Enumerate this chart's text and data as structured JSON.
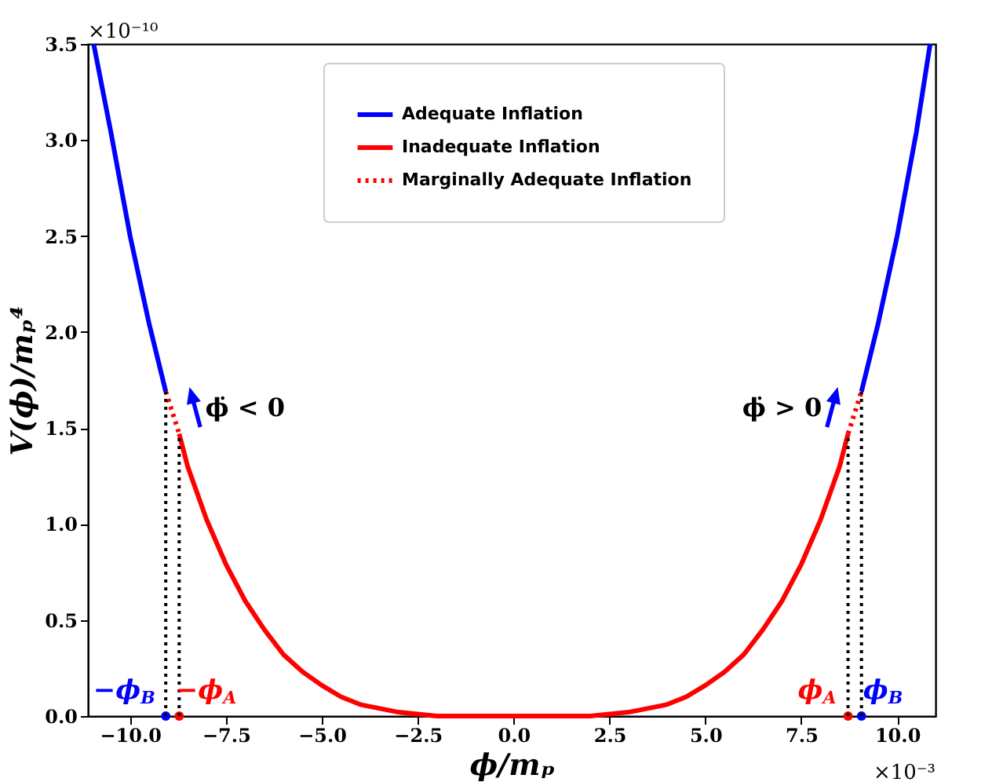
{
  "chart_data": {
    "type": "line",
    "xlabel": "ϕ/mₚ",
    "ylabel": "V(ϕ)/mₚ⁴",
    "xlim": [
      -11.1,
      11.0
    ],
    "ylim": [
      0,
      3.5
    ],
    "xticks": [
      {
        "value": -10,
        "label": "−10.0"
      },
      {
        "value": -7.5,
        "label": "−7.5"
      },
      {
        "value": -5,
        "label": "−5.0"
      },
      {
        "value": -2.5,
        "label": "−2.5"
      },
      {
        "value": 0,
        "label": "0.0"
      },
      {
        "value": 2.5,
        "label": "2.5"
      },
      {
        "value": 5,
        "label": "5.0"
      },
      {
        "value": 7.5,
        "label": "7.5"
      },
      {
        "value": 10,
        "label": "10.0"
      }
    ],
    "yticks": [
      {
        "value": 0,
        "label": "0.0"
      },
      {
        "value": 0.5,
        "label": "0.5"
      },
      {
        "value": 1,
        "label": "1.0"
      },
      {
        "value": 1.5,
        "label": "1.5"
      },
      {
        "value": 2,
        "label": "2.0"
      },
      {
        "value": 2.5,
        "label": "2.5"
      },
      {
        "value": 3,
        "label": "3.0"
      },
      {
        "value": 3.5,
        "label": "3.5"
      }
    ],
    "series": [
      {
        "name": "Adequate Inflation",
        "color": "#0000ff",
        "line_style": "solid",
        "x": [
          -10.95,
          -10.5,
          -10,
          -9.5,
          -9.07,
          0,
          9.07,
          9.5,
          10,
          10.5,
          10.86
        ],
        "values": [
          3.5,
          3.04,
          2.5,
          2.04,
          1.69,
          null,
          1.69,
          2.04,
          2.5,
          3.04,
          3.5
        ]
      },
      {
        "name": "Inadequate Inflation",
        "color": "#ff0000",
        "line_style": "solid",
        "x": [
          -8.72,
          -8.5,
          -8,
          -7.5,
          -7,
          -6.5,
          -6,
          -5.5,
          -5,
          -4.5,
          -4,
          -3,
          -2,
          -1,
          0,
          1,
          2,
          3,
          4,
          4.5,
          5,
          5.5,
          6,
          6.5,
          7,
          7.5,
          8,
          8.5,
          8.72
        ],
        "values": [
          1.47,
          1.3,
          1.02,
          0.79,
          0.6,
          0.45,
          0.32,
          0.23,
          0.16,
          0.1,
          0.06,
          0.02,
          0.0,
          0,
          0,
          0,
          0.0,
          0.02,
          0.06,
          0.1,
          0.16,
          0.23,
          0.32,
          0.45,
          0.6,
          0.79,
          1.02,
          1.3,
          1.47
        ]
      },
      {
        "name": "Marginally Adequate Inflation",
        "color": "#ff0000",
        "line_style": "dotted",
        "x": [
          -9.07,
          -8.72,
          0,
          8.72,
          9.07
        ],
        "values": [
          1.69,
          1.47,
          null,
          1.47,
          1.69
        ]
      },
      {
        "type": "scatter",
        "marker": "circle",
        "colors": [
          "#0000ff",
          "#ff0000",
          "#ff0000",
          "#0000ff"
        ],
        "x": [
          -9.07,
          -8.72,
          8.72,
          9.07
        ],
        "values": [
          0,
          0,
          0,
          0
        ]
      }
    ],
    "ref_lines": [
      {
        "axis": "x",
        "value": -9.07,
        "label": "−ϕ$_{B}$",
        "color": "#000000",
        "line_style": "dotted"
      },
      {
        "axis": "x",
        "value": -8.72,
        "label": "−ϕ$_{A}$",
        "color": "#000000",
        "line_style": "dotted"
      },
      {
        "axis": "x",
        "value": 8.72,
        "label": "ϕ$_{A}$",
        "color": "#000000",
        "line_style": "dotted"
      },
      {
        "axis": "x",
        "value": 9.07,
        "label": "ϕ$_{B}$",
        "color": "#000000",
        "line_style": "dotted"
      }
    ],
    "annotations": [
      "×10⁻¹⁰",
      "×10⁻³",
      "ϕ̇ < 0",
      "ϕ̇ > 0"
    ],
    "legend": "top",
    "grid": false,
    "marker": "none"
  }
}
